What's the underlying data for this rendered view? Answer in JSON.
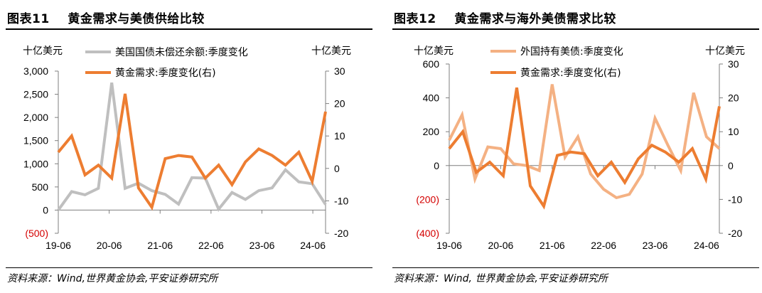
{
  "chart_data": [
    {
      "type": "line",
      "title_prefix": "图表11",
      "title": "黄金需求与美债供给比较",
      "left_unit": "十亿美元",
      "right_unit": "十亿美元",
      "left_ylim": [
        -500,
        3000
      ],
      "left_ticks": [
        "3,000",
        "2,500",
        "2,000",
        "1,500",
        "1,000",
        "500",
        "0",
        "(500)"
      ],
      "right_ylim": [
        -20,
        30
      ],
      "right_ticks": [
        "30",
        "20",
        "10",
        "0",
        "-10",
        "-20"
      ],
      "x_ticks": [
        "19-06",
        "20-06",
        "21-06",
        "22-06",
        "23-06",
        "24-06"
      ],
      "series": [
        {
          "name": "美国国债未偿还余额:季度变化",
          "axis": "left",
          "color": "#bfbfbf",
          "values": [
            0,
            400,
            330,
            470,
            2750,
            470,
            580,
            420,
            340,
            130,
            700,
            690,
            20,
            380,
            230,
            420,
            480,
            870,
            610,
            570,
            120
          ]
        },
        {
          "name": "黄金需求:季度变化(右)",
          "axis": "right",
          "color": "#ed7d31",
          "values": [
            5,
            10,
            -2,
            1,
            -3,
            23,
            -6,
            -12,
            3,
            4,
            3.5,
            -3,
            1,
            -5,
            2,
            6,
            4,
            1,
            5,
            -4,
            17.5
          ]
        }
      ],
      "source": "资料来源：Wind,世界黄金协会,平安证券研究所"
    },
    {
      "type": "line",
      "title_prefix": "图表12",
      "title": "黄金需求与海外美债需求比较",
      "left_unit": "十亿美元",
      "right_unit": "十亿美元",
      "left_ylim": [
        -400,
        600
      ],
      "left_ticks": [
        "600",
        "400",
        "200",
        "0",
        "(200)",
        "(400)"
      ],
      "right_ylim": [
        -20,
        30
      ],
      "right_ticks": [
        "30",
        "20",
        "10",
        "0",
        "-10",
        "-20"
      ],
      "x_ticks": [
        "19-06",
        "20-06",
        "21-06",
        "22-06",
        "23-06",
        "24-06"
      ],
      "series": [
        {
          "name": "外国持有美债:季度变化",
          "axis": "left",
          "color": "#f4b183",
          "values": [
            150,
            300,
            -80,
            110,
            100,
            10,
            0,
            -30,
            480,
            50,
            170,
            -50,
            -140,
            -190,
            -170,
            -50,
            280,
            120,
            -30,
            430,
            170,
            100
          ]
        },
        {
          "name": "黄金需求:季度变化(右)",
          "axis": "right",
          "color": "#ed7d31",
          "values": [
            5,
            10,
            -2,
            1,
            -3,
            23,
            -6,
            -12,
            3,
            4,
            3.5,
            -3,
            1,
            -5,
            2,
            6,
            4,
            1,
            5,
            -4,
            17.5
          ]
        }
      ],
      "source": "资料来源：Wind, 世界黄金协会,平安证券研究所"
    }
  ]
}
